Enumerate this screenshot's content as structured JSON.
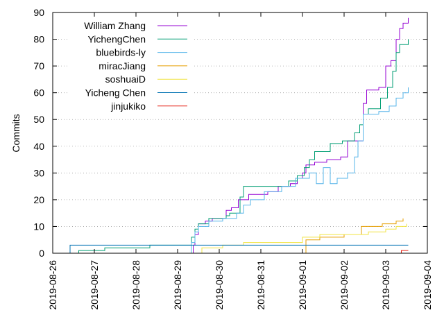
{
  "chart_data": {
    "type": "line",
    "title": "",
    "xlabel": "",
    "ylabel": "Commits",
    "ylim": [
      0,
      90
    ],
    "xlim": [
      "2019-08-26",
      "2019-09-04"
    ],
    "x_ticks": [
      "2019-08-26",
      "2019-08-27",
      "2019-08-28",
      "2019-08-29",
      "2019-08-30",
      "2019-08-31",
      "2019-09-01",
      "2019-09-02",
      "2019-09-03",
      "2019-09-04"
    ],
    "y_ticks": [
      0,
      10,
      20,
      30,
      40,
      50,
      60,
      70,
      80,
      90
    ],
    "grid": "dotted",
    "legend_position": "top-left",
    "series": [
      {
        "name": "William Zhang",
        "color": "#9400d3",
        "points": [
          [
            "2019-08-29 08:00",
            0
          ],
          [
            "2019-08-29 09:00",
            3
          ],
          [
            "2019-08-29 10:00",
            7
          ],
          [
            "2019-08-29 12:00",
            11
          ],
          [
            "2019-08-29 16:00",
            12
          ],
          [
            "2019-08-29 20:00",
            13
          ],
          [
            "2019-08-30 02:00",
            13
          ],
          [
            "2019-08-30 04:00",
            16
          ],
          [
            "2019-08-30 07:00",
            17
          ],
          [
            "2019-08-30 11:00",
            20
          ],
          [
            "2019-08-30 17:00",
            22
          ],
          [
            "2019-08-31 04:00",
            23
          ],
          [
            "2019-08-31 10:00",
            25
          ],
          [
            "2019-08-31 17:00",
            26
          ],
          [
            "2019-08-31 21:00",
            28
          ],
          [
            "2019-09-01 00:00",
            30
          ],
          [
            "2019-09-01 02:00",
            33
          ],
          [
            "2019-09-01 07:00",
            34
          ],
          [
            "2019-09-01 14:00",
            35
          ],
          [
            "2019-09-01 22:00",
            36
          ],
          [
            "2019-09-02 02:00",
            42
          ],
          [
            "2019-09-02 08:00",
            42
          ],
          [
            "2019-09-02 11:00",
            56
          ],
          [
            "2019-09-02 13:00",
            61
          ],
          [
            "2019-09-02 20:00",
            62
          ],
          [
            "2019-09-03 00:00",
            70
          ],
          [
            "2019-09-03 03:00",
            72
          ],
          [
            "2019-09-03 06:00",
            80
          ],
          [
            "2019-09-03 08:00",
            84
          ],
          [
            "2019-09-03 10:00",
            86
          ],
          [
            "2019-09-03 13:00",
            88
          ]
        ]
      },
      {
        "name": "YichengChen",
        "color": "#009e73",
        "points": [
          [
            "2019-08-26 10:00",
            0
          ],
          [
            "2019-08-26 15:00",
            1
          ],
          [
            "2019-08-27 06:00",
            2
          ],
          [
            "2019-08-28 08:00",
            3
          ],
          [
            "2019-08-29 08:00",
            6
          ],
          [
            "2019-08-29 10:00",
            9
          ],
          [
            "2019-08-29 12:00",
            11
          ],
          [
            "2019-08-29 18:00",
            13
          ],
          [
            "2019-08-30 04:00",
            14
          ],
          [
            "2019-08-30 06:00",
            15
          ],
          [
            "2019-08-30 12:00",
            21
          ],
          [
            "2019-08-30 14:00",
            25
          ],
          [
            "2019-08-31 10:00",
            25
          ],
          [
            "2019-08-31 16:00",
            27
          ],
          [
            "2019-08-31 21:00",
            29
          ],
          [
            "2019-09-01 01:00",
            32
          ],
          [
            "2019-09-01 04:00",
            35
          ],
          [
            "2019-09-01 07:00",
            38
          ],
          [
            "2019-09-01 16:00",
            41
          ],
          [
            "2019-09-01 23:00",
            42
          ],
          [
            "2019-09-02 06:00",
            45
          ],
          [
            "2019-09-02 09:00",
            48
          ],
          [
            "2019-09-02 11:00",
            52
          ],
          [
            "2019-09-02 14:00",
            54
          ],
          [
            "2019-09-02 21:00",
            58
          ],
          [
            "2019-09-03 01:00",
            62
          ],
          [
            "2019-09-03 04:00",
            68
          ],
          [
            "2019-09-03 06:00",
            75
          ],
          [
            "2019-09-03 08:00",
            78
          ],
          [
            "2019-09-03 13:00",
            80
          ]
        ]
      },
      {
        "name": "bluebirds-ly",
        "color": "#56b4e9",
        "points": [
          [
            "2019-08-29 06:00",
            0
          ],
          [
            "2019-08-29 08:00",
            4
          ],
          [
            "2019-08-29 10:00",
            8
          ],
          [
            "2019-08-29 12:00",
            10
          ],
          [
            "2019-08-29 18:00",
            12
          ],
          [
            "2019-08-30 02:00",
            13
          ],
          [
            "2019-08-30 10:00",
            15
          ],
          [
            "2019-08-30 14:00",
            18
          ],
          [
            "2019-08-30 18:00",
            20
          ],
          [
            "2019-08-31 02:00",
            23
          ],
          [
            "2019-08-31 12:00",
            25
          ],
          [
            "2019-08-31 20:00",
            28
          ],
          [
            "2019-09-01 04:00",
            30
          ],
          [
            "2019-09-01 08:00",
            26
          ],
          [
            "2019-09-01 12:00",
            32
          ],
          [
            "2019-09-01 16:00",
            26
          ],
          [
            "2019-09-01 20:00",
            28
          ],
          [
            "2019-09-02 02:00",
            30
          ],
          [
            "2019-09-02 06:00",
            36
          ],
          [
            "2019-09-02 08:00",
            42
          ],
          [
            "2019-09-02 11:00",
            52
          ],
          [
            "2019-09-02 20:00",
            53
          ],
          [
            "2019-09-03 02:00",
            55
          ],
          [
            "2019-09-03 06:00",
            58
          ],
          [
            "2019-09-03 10:00",
            60
          ],
          [
            "2019-09-03 13:00",
            62
          ]
        ]
      },
      {
        "name": "miracJiang",
        "color": "#e69f00",
        "points": [
          [
            "2019-09-01 01:00",
            0
          ],
          [
            "2019-09-01 02:00",
            5
          ],
          [
            "2019-09-01 10:00",
            6
          ],
          [
            "2019-09-02 00:00",
            7
          ],
          [
            "2019-09-02 10:00",
            10
          ],
          [
            "2019-09-02 22:00",
            11
          ],
          [
            "2019-09-03 06:00",
            12
          ],
          [
            "2019-09-03 10:00",
            13
          ]
        ]
      },
      {
        "name": "soshuaiD",
        "color": "#f0e442",
        "points": [
          [
            "2019-08-29 12:00",
            0
          ],
          [
            "2019-08-29 14:00",
            2
          ],
          [
            "2019-08-30 02:00",
            3
          ],
          [
            "2019-08-30 14:00",
            4
          ],
          [
            "2019-09-01 00:00",
            6
          ],
          [
            "2019-09-01 10:00",
            7
          ],
          [
            "2019-09-02 10:00",
            7
          ],
          [
            "2019-09-02 14:00",
            8
          ],
          [
            "2019-09-03 00:00",
            9
          ],
          [
            "2019-09-03 06:00",
            10
          ],
          [
            "2019-09-03 12:00",
            11
          ]
        ]
      },
      {
        "name": "Yicheng Chen",
        "color": "#0072b2",
        "points": [
          [
            "2019-08-26 10:00",
            0
          ],
          [
            "2019-08-26 10:00",
            3
          ],
          [
            "2019-09-03 13:00",
            3
          ]
        ]
      },
      {
        "name": "jinjukiko",
        "color": "#e51e10",
        "points": [
          [
            "2019-09-03 09:00",
            0
          ],
          [
            "2019-09-03 09:00",
            1
          ],
          [
            "2019-09-03 13:00",
            1
          ]
        ]
      }
    ]
  }
}
